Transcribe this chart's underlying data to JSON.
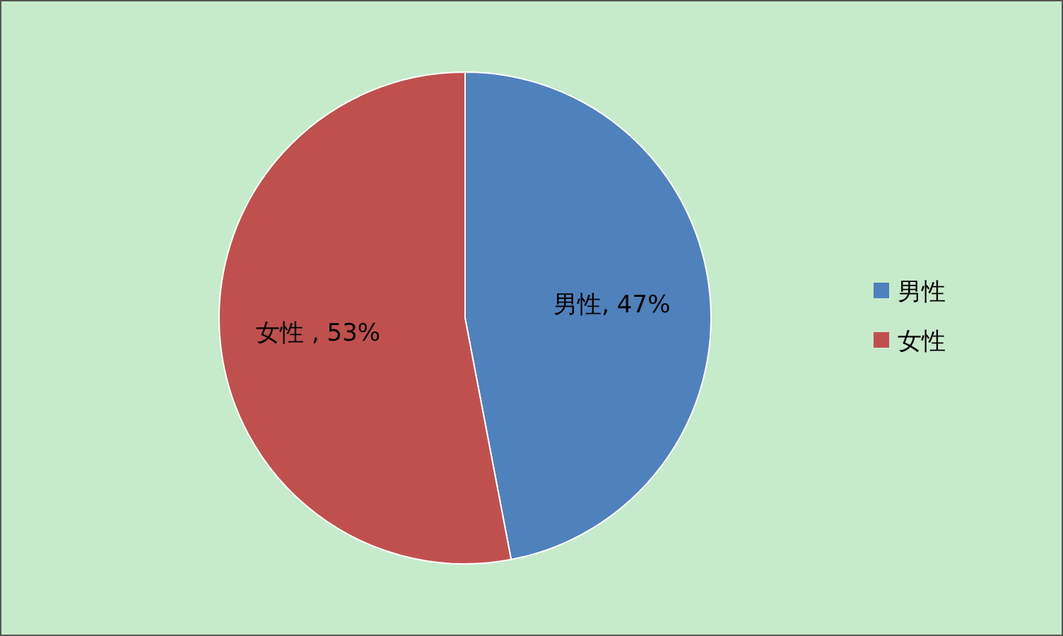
{
  "chart_data": {
    "type": "pie",
    "categories": [
      "男性",
      "女性"
    ],
    "values": [
      47,
      53
    ],
    "colors": [
      "#4f81bd",
      "#c0504d"
    ],
    "value_labels": [
      "男性, 47%",
      "女性 , 53%"
    ],
    "legend": "right"
  }
}
